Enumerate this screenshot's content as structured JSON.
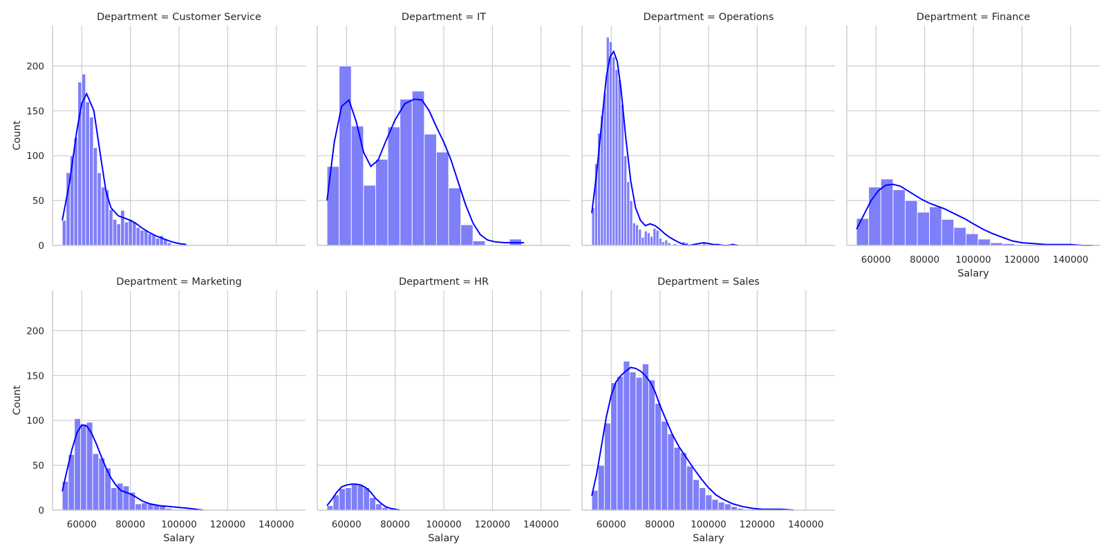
{
  "chart_data": {
    "type": "histogram",
    "facet_label_prefix": "Department = ",
    "xlabel": "Salary",
    "ylabel": "Count",
    "xlim": [
      48000,
      152000
    ],
    "ylim": [
      0,
      245
    ],
    "x_ticks": [
      60000,
      80000,
      100000,
      120000,
      140000
    ],
    "y_ticks": [
      0,
      50,
      100,
      150,
      200
    ],
    "grid": true,
    "colors": {
      "bar": "#7f7ff9",
      "kde": "#0000ff",
      "grid": "#cccccc"
    },
    "panels": [
      {
        "name": "Customer Service",
        "bin_start": 52000,
        "bin_width": 1600,
        "counts": [
          28,
          81,
          100,
          120,
          182,
          191,
          160,
          143,
          109,
          81,
          65,
          62,
          40,
          29,
          24,
          39,
          26,
          29,
          26,
          20,
          17,
          17,
          13,
          12,
          8,
          11,
          7,
          3,
          1,
          1,
          1,
          1,
          1
        ],
        "kde_x": [
          52000,
          55000,
          58000,
          60000,
          62000,
          65000,
          68000,
          70000,
          72000,
          75000,
          78000,
          80000,
          82000,
          85000,
          88000,
          91000,
          94000,
          97000,
          100000,
          103000
        ],
        "kde_y": [
          28,
          70,
          128,
          158,
          169,
          150,
          95,
          60,
          42,
          33,
          30,
          28,
          25,
          19,
          14,
          10,
          7,
          4,
          2,
          1
        ]
      },
      {
        "name": "IT",
        "bin_start": 52000,
        "bin_width": 5000,
        "counts": [
          88,
          200,
          133,
          67,
          96,
          132,
          163,
          172,
          124,
          104,
          64,
          23,
          5,
          0,
          0,
          7
        ],
        "kde_x": [
          52000,
          55000,
          58000,
          61000,
          64000,
          67000,
          70000,
          73000,
          76000,
          80000,
          84000,
          88000,
          91000,
          94000,
          97000,
          100000,
          103000,
          106000,
          109000,
          112000,
          115000,
          118000,
          121000,
          125000,
          129000,
          133000
        ],
        "kde_y": [
          50,
          115,
          155,
          162,
          138,
          104,
          88,
          95,
          115,
          140,
          158,
          163,
          162,
          150,
          132,
          115,
          95,
          70,
          45,
          25,
          12,
          6,
          4,
          3,
          3,
          3
        ]
      },
      {
        "name": "Operations",
        "bin_start": 52000,
        "bin_width": 1200,
        "counts": [
          42,
          91,
          125,
          145,
          170,
          232,
          227,
          210,
          196,
          185,
          157,
          100,
          71,
          50,
          25,
          23,
          18,
          9,
          16,
          14,
          10,
          19,
          17,
          8,
          4,
          6,
          3,
          1,
          2,
          1,
          1,
          4,
          3,
          1,
          1,
          1,
          1,
          1,
          3,
          1
        ],
        "kde_x": [
          52000,
          54000,
          56000,
          58000,
          59500,
          61000,
          62500,
          64000,
          66000,
          68000,
          70000,
          72000,
          74000,
          76000,
          78000,
          80000,
          82000,
          84000,
          86000,
          88000,
          90000,
          92000,
          94000,
          96000,
          98000,
          100000,
          102000,
          104000,
          106000,
          108000,
          110000,
          112000
        ],
        "kde_y": [
          36,
          80,
          135,
          188,
          210,
          216,
          205,
          175,
          120,
          72,
          42,
          28,
          22,
          24,
          22,
          18,
          13,
          9,
          6,
          3,
          1,
          0,
          1,
          2,
          3,
          2,
          1,
          1,
          0,
          0,
          1,
          0
        ]
      },
      {
        "name": "Finance",
        "bin_start": 52000,
        "bin_width": 5000,
        "counts": [
          30,
          65,
          74,
          62,
          50,
          37,
          43,
          29,
          20,
          13,
          7,
          3,
          2,
          1,
          1,
          1,
          0,
          0,
          0,
          1
        ],
        "kde_x": [
          52000,
          55000,
          58000,
          61000,
          64000,
          67000,
          70000,
          73000,
          76000,
          79000,
          82000,
          85000,
          88000,
          91000,
          94000,
          97000,
          100000,
          104000,
          108000,
          112000,
          116000,
          120000,
          125000,
          130000,
          135000,
          140000,
          145000,
          149000
        ],
        "kde_y": [
          18,
          34,
          50,
          61,
          67,
          68,
          66,
          61,
          56,
          51,
          47,
          44,
          41,
          37,
          33,
          29,
          24,
          18,
          13,
          9,
          5,
          3,
          2,
          1,
          1,
          1,
          0,
          0
        ]
      },
      {
        "name": "Marketing",
        "bin_start": 52000,
        "bin_width": 2500,
        "counts": [
          32,
          62,
          102,
          96,
          98,
          63,
          58,
          47,
          25,
          30,
          27,
          20,
          7,
          8,
          7,
          6,
          5,
          2,
          1,
          1,
          1
        ],
        "kde_x": [
          52000,
          54000,
          56000,
          58000,
          60000,
          62000,
          64000,
          66000,
          68000,
          70000,
          72000,
          74000,
          76000,
          78000,
          80000,
          82000,
          85000,
          88000,
          92000,
          96000,
          100000,
          104000,
          107000,
          110000
        ],
        "kde_y": [
          21,
          45,
          68,
          86,
          95,
          94,
          86,
          74,
          60,
          47,
          36,
          28,
          22,
          20,
          18,
          15,
          10,
          7,
          5,
          4,
          3,
          2,
          1,
          0
        ]
      },
      {
        "name": "HR",
        "bin_start": 52000,
        "bin_width": 2500,
        "counts": [
          5,
          17,
          24,
          25,
          30,
          28,
          25,
          14,
          7,
          3,
          1,
          1
        ],
        "kde_x": [
          52000,
          54000,
          56000,
          58000,
          60000,
          62000,
          64000,
          66000,
          68000,
          70000,
          72000,
          74000,
          76000,
          78000,
          80000,
          82000
        ],
        "kde_y": [
          5,
          12,
          20,
          26,
          28,
          29,
          29,
          28,
          25,
          20,
          13,
          8,
          4,
          2,
          1,
          0
        ]
      },
      {
        "name": "Sales",
        "bin_start": 52000,
        "bin_width": 2600,
        "counts": [
          22,
          50,
          97,
          142,
          149,
          166,
          154,
          148,
          163,
          145,
          119,
          99,
          85,
          70,
          64,
          49,
          34,
          25,
          17,
          12,
          9,
          7,
          4,
          2,
          1,
          1,
          1,
          1,
          1,
          1,
          1
        ],
        "kde_x": [
          52000,
          54000,
          56000,
          58000,
          60000,
          62000,
          64000,
          66000,
          68000,
          70000,
          72000,
          74000,
          76000,
          78000,
          80000,
          82000,
          85000,
          88000,
          91000,
          94000,
          97000,
          100000,
          103000,
          106000,
          110000,
          114000,
          118000,
          122000,
          126000,
          130000,
          135000
        ],
        "kde_y": [
          16,
          40,
          72,
          104,
          128,
          143,
          150,
          155,
          159,
          158,
          155,
          150,
          143,
          132,
          117,
          104,
          85,
          70,
          58,
          46,
          35,
          25,
          17,
          12,
          7,
          4,
          2,
          1,
          1,
          1,
          0
        ]
      }
    ]
  }
}
